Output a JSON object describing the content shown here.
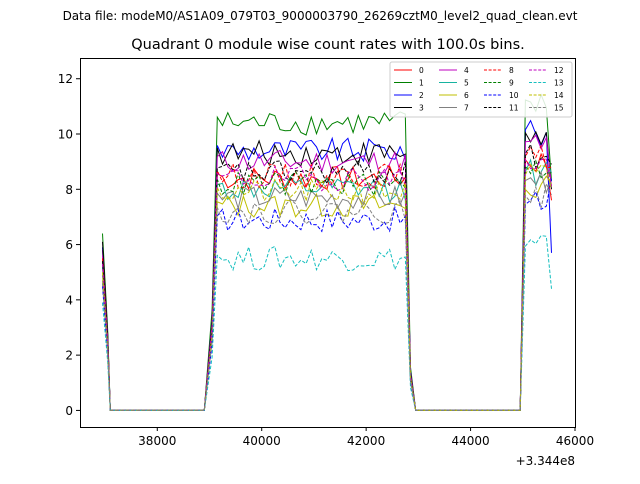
{
  "chart_data": {
    "type": "line",
    "suptitle": "Data file: modeM0/AS1A09_079T03_9000003790_26269cztM0_level2_quad_clean.evt",
    "title": "Quadrant 0 module wise count rates with 100.0s bins.",
    "xlabel": "",
    "ylabel": "",
    "x_offset_label": "+3.344e8",
    "xlim": [
      36520,
      46000
    ],
    "ylim": [
      -0.6,
      12.75
    ],
    "xticks": [
      38000,
      40000,
      42000,
      44000,
      46000
    ],
    "xtick_labels": [
      "38000",
      "40000",
      "42000",
      "44000",
      "46000"
    ],
    "yticks": [
      0,
      2,
      4,
      6,
      8,
      10,
      12
    ],
    "ytick_labels": [
      "0",
      "2",
      "4",
      "6",
      "8",
      "10",
      "12"
    ],
    "bin_width": 100,
    "segments": [
      {
        "start": 36950,
        "peak_end": 37000,
        "gap_start": 37100,
        "gap_end": 38950
      },
      {
        "rise_start": 38950,
        "plateau_start": 39250,
        "plateau_end": 42800,
        "fall_end": 42950
      },
      {
        "gap_start": 42950,
        "gap_end": 44950
      },
      {
        "rise_start": 44950,
        "plateau_start": 45100,
        "end": 45550
      }
    ],
    "series": [
      {
        "name": "0",
        "color": "#ff0000",
        "dash": "solid",
        "level": 8.4,
        "start_value": 5.8,
        "end_value": 7.6
      },
      {
        "name": "1",
        "color": "#008000",
        "dash": "solid",
        "level": 10.4,
        "start_value": 6.4,
        "end_value": 8.3
      },
      {
        "name": "2",
        "color": "#0000ff",
        "dash": "solid",
        "level": 9.4,
        "start_value": 5.9,
        "end_value": 5.7
      },
      {
        "name": "3",
        "color": "#000000",
        "dash": "solid",
        "level": 9.3,
        "start_value": 6.1,
        "end_value": 8.0
      },
      {
        "name": "4",
        "color": "#bf00bf",
        "dash": "solid",
        "level": 9.0,
        "start_value": 5.6,
        "end_value": 8.1
      },
      {
        "name": "5",
        "color": "#17b3a0",
        "dash": "solid",
        "level": 8.0,
        "start_value": 5.2,
        "end_value": 8.6
      },
      {
        "name": "6",
        "color": "#bfbf00",
        "dash": "solid",
        "level": 7.4,
        "start_value": 4.7,
        "end_value": 8.2
      },
      {
        "name": "7",
        "color": "#808080",
        "dash": "solid",
        "level": 7.7,
        "start_value": 4.9,
        "end_value": 8.4
      },
      {
        "name": "8",
        "color": "#ff0000",
        "dash": "dashed",
        "level": 8.5,
        "start_value": 5.5,
        "end_value": 8.8
      },
      {
        "name": "9",
        "color": "#008000",
        "dash": "dashed",
        "level": 8.2,
        "start_value": 5.3,
        "end_value": 8.6
      },
      {
        "name": "10",
        "color": "#0000ff",
        "dash": "dashed",
        "level": 6.9,
        "start_value": 4.5,
        "end_value": 8.4
      },
      {
        "name": "11",
        "color": "#000000",
        "dash": "dashed",
        "level": 8.6,
        "start_value": 5.4,
        "end_value": 8.9
      },
      {
        "name": "12",
        "color": "#bf00bf",
        "dash": "dashed",
        "level": 8.4,
        "start_value": 5.3,
        "end_value": 8.1
      },
      {
        "name": "13",
        "color": "#17bfbf",
        "dash": "dashed",
        "level": 5.5,
        "start_value": 3.9,
        "end_value": 4.4
      },
      {
        "name": "14",
        "color": "#bfbf00",
        "dash": "dashed",
        "level": 7.9,
        "start_value": 5.0,
        "end_value": 8.0
      },
      {
        "name": "15",
        "color": "#808080",
        "dash": "dashed",
        "level": 7.2,
        "start_value": 4.6,
        "end_value": 7.8
      }
    ],
    "legend_location": "upper right",
    "legend_columns": 4,
    "grid": false
  }
}
